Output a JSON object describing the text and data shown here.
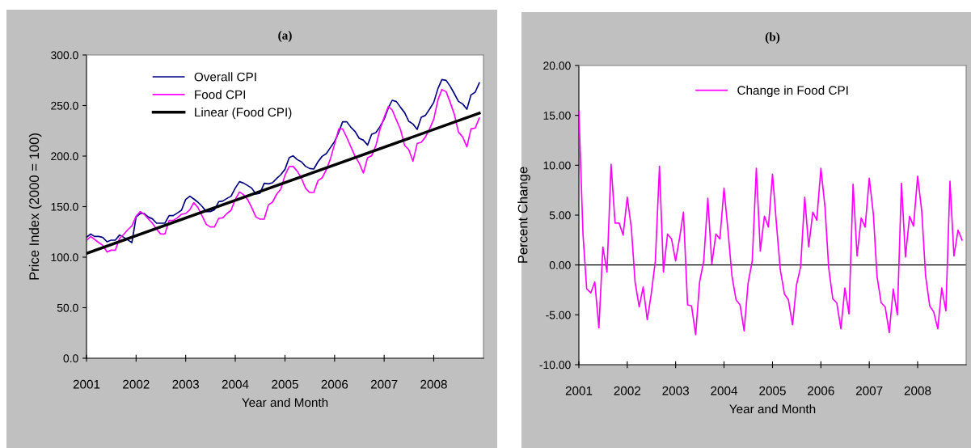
{
  "chart_data": [
    {
      "type": "line",
      "title": "(a)",
      "xlabel": "Year and Month",
      "ylabel": "Price Index (2000 = 100)",
      "x": [
        "2001-01",
        "2001-02",
        "2001-03",
        "2001-04",
        "2001-05",
        "2001-06",
        "2001-07",
        "2001-08",
        "2001-09",
        "2001-10",
        "2001-11",
        "2001-12",
        "2002-01",
        "2002-02",
        "2002-03",
        "2002-04",
        "2002-05",
        "2002-06",
        "2002-07",
        "2002-08",
        "2002-09",
        "2002-10",
        "2002-11",
        "2002-12",
        "2003-01",
        "2003-02",
        "2003-03",
        "2003-04",
        "2003-05",
        "2003-06",
        "2003-07",
        "2003-08",
        "2003-09",
        "2003-10",
        "2003-11",
        "2003-12",
        "2004-01",
        "2004-02",
        "2004-03",
        "2004-04",
        "2004-05",
        "2004-06",
        "2004-07",
        "2004-08",
        "2004-09",
        "2004-10",
        "2004-11",
        "2004-12",
        "2005-01",
        "2005-02",
        "2005-03",
        "2005-04",
        "2005-05",
        "2005-06",
        "2005-07",
        "2005-08",
        "2005-09",
        "2005-10",
        "2005-11",
        "2005-12",
        "2006-01",
        "2006-02",
        "2006-03",
        "2006-04",
        "2006-05",
        "2006-06",
        "2006-07",
        "2006-08",
        "2006-09",
        "2006-10",
        "2006-11",
        "2006-12",
        "2007-01",
        "2007-02",
        "2007-03",
        "2007-04",
        "2007-05",
        "2007-06",
        "2007-07",
        "2007-08",
        "2007-09",
        "2007-10",
        "2007-11",
        "2007-12",
        "2008-01",
        "2008-02",
        "2008-03",
        "2008-04",
        "2008-05",
        "2008-06",
        "2008-07",
        "2008-08",
        "2008-09",
        "2008-10",
        "2008-11",
        "2008-12"
      ],
      "xlim": [
        "2001-01",
        "2009-01"
      ],
      "xticks": [
        {
          "value": "2001-01",
          "label": "2001"
        },
        {
          "value": "2002-01",
          "label": "2002"
        },
        {
          "value": "2003-01",
          "label": "2003"
        },
        {
          "value": "2004-01",
          "label": "2004"
        },
        {
          "value": "2005-01",
          "label": "2005"
        },
        {
          "value": "2006-01",
          "label": "2006"
        },
        {
          "value": "2007-01",
          "label": "2007"
        },
        {
          "value": "2008-01",
          "label": "2008"
        }
      ],
      "ylim": [
        0,
        300
      ],
      "yticks": [
        {
          "value": 0,
          "label": "0.0"
        },
        {
          "value": 50,
          "label": "50.0"
        },
        {
          "value": 100,
          "label": "100.0"
        },
        {
          "value": 150,
          "label": "150.0"
        },
        {
          "value": 200,
          "label": "200.0"
        },
        {
          "value": 250,
          "label": "250.0"
        },
        {
          "value": 300,
          "label": "300.0"
        }
      ],
      "legend": "top left",
      "grid": false,
      "series": [
        {
          "name": "Overall CPI",
          "color": "#000080",
          "values": [
            119.7,
            122.9,
            120.5,
            120.5,
            119.5,
            115.2,
            116.8,
            116.8,
            121.9,
            119.7,
            117.1,
            114.4,
            139.7,
            143.2,
            143.2,
            139.7,
            137.9,
            133.6,
            133.6,
            133.6,
            141.1,
            141.1,
            143.7,
            146.4,
            157.1,
            160.3,
            157.6,
            154.4,
            150.4,
            145.1,
            145.1,
            146.9,
            154.9,
            155.5,
            158.1,
            160.3,
            168.3,
            174.7,
            173.3,
            170.9,
            168.3,
            162.4,
            163.2,
            173.1,
            172.5,
            173.6,
            177.9,
            181.6,
            186.9,
            198.4,
            200.3,
            196.5,
            194.4,
            189.9,
            187.7,
            187.2,
            194.4,
            199.7,
            202.4,
            208.3,
            214.4,
            223.7,
            233.9,
            233.9,
            228.5,
            224.3,
            217.6,
            215.7,
            210.9,
            221.6,
            223.2,
            229.1,
            236.5,
            247.7,
            255.2,
            253.9,
            248.3,
            242.9,
            234.4,
            231.7,
            226.4,
            238.4,
            240.3,
            246.4,
            253.1,
            266.9,
            275.7,
            274.9,
            269.1,
            261.6,
            254.1,
            251.5,
            246.4,
            260.5,
            263.2,
            272.3
          ]
        },
        {
          "name": "Food CPI",
          "color": "#ff00ff",
          "values": [
            116.5,
            120.5,
            117.6,
            114.4,
            111.7,
            105.1,
            106.9,
            106.9,
            118.4,
            122.4,
            127.2,
            130.9,
            140.5,
            145.1,
            142.4,
            137.9,
            133.6,
            127.7,
            122.9,
            122.9,
            136.3,
            136.3,
            138.9,
            142.4,
            143.2,
            146.9,
            153.9,
            149.1,
            141.1,
            132.5,
            129.9,
            129.9,
            138.4,
            138.9,
            143.2,
            146.4,
            157.1,
            164.5,
            161.9,
            157.1,
            149.1,
            139.7,
            137.6,
            137.6,
            151.7,
            154.4,
            162.4,
            167.2,
            181.1,
            189.6,
            189.9,
            185.1,
            178.4,
            168.3,
            164.0,
            164.0,
            175.7,
            178.4,
            186.4,
            197.1,
            211.7,
            226.9,
            226.9,
            218.4,
            209.1,
            199.7,
            193.1,
            183.2,
            198.4,
            200.3,
            210.4,
            226.4,
            238.4,
            249.1,
            245.6,
            235.7,
            226.4,
            210.4,
            206.4,
            194.9,
            212.5,
            213.6,
            218.9,
            226.9,
            236.5,
            255.7,
            265.9,
            263.7,
            253.1,
            241.1,
            223.7,
            218.9,
            209.1,
            226.9,
            227.7,
            237.6
          ]
        },
        {
          "name": "Linear (Food CPI)",
          "color": "#000000",
          "x": [
            "2001-01",
            "2008-12"
          ],
          "values": [
            103.7,
            242.4
          ]
        }
      ]
    },
    {
      "type": "line",
      "title": "(b)",
      "xlabel": "Year and Month",
      "ylabel": "Percent Change",
      "x": [
        "2001-01",
        "2001-02",
        "2001-03",
        "2001-04",
        "2001-05",
        "2001-06",
        "2001-07",
        "2001-08",
        "2001-09",
        "2001-10",
        "2001-11",
        "2001-12",
        "2002-01",
        "2002-02",
        "2002-03",
        "2002-04",
        "2002-05",
        "2002-06",
        "2002-07",
        "2002-08",
        "2002-09",
        "2002-10",
        "2002-11",
        "2002-12",
        "2003-01",
        "2003-02",
        "2003-03",
        "2003-04",
        "2003-05",
        "2003-06",
        "2003-07",
        "2003-08",
        "2003-09",
        "2003-10",
        "2003-11",
        "2003-12",
        "2004-01",
        "2004-02",
        "2004-03",
        "2004-04",
        "2004-05",
        "2004-06",
        "2004-07",
        "2004-08",
        "2004-09",
        "2004-10",
        "2004-11",
        "2004-12",
        "2005-01",
        "2005-02",
        "2005-03",
        "2005-04",
        "2005-05",
        "2005-06",
        "2005-07",
        "2005-08",
        "2005-09",
        "2005-10",
        "2005-11",
        "2005-12",
        "2006-01",
        "2006-02",
        "2006-03",
        "2006-04",
        "2006-05",
        "2006-06",
        "2006-07",
        "2006-08",
        "2006-09",
        "2006-10",
        "2006-11",
        "2006-12",
        "2007-01",
        "2007-02",
        "2007-03",
        "2007-04",
        "2007-05",
        "2007-06",
        "2007-07",
        "2007-08",
        "2007-09",
        "2007-10",
        "2007-11",
        "2007-12",
        "2008-01",
        "2008-02",
        "2008-03",
        "2008-04",
        "2008-05",
        "2008-06",
        "2008-07",
        "2008-08",
        "2008-09",
        "2008-10",
        "2008-11",
        "2008-12"
      ],
      "xlim": [
        "2001-01",
        "2009-01"
      ],
      "xticks": [
        {
          "value": "2001-01",
          "label": "2001"
        },
        {
          "value": "2002-01",
          "label": "2002"
        },
        {
          "value": "2003-01",
          "label": "2003"
        },
        {
          "value": "2004-01",
          "label": "2004"
        },
        {
          "value": "2005-01",
          "label": "2005"
        },
        {
          "value": "2006-01",
          "label": "2006"
        },
        {
          "value": "2007-01",
          "label": "2007"
        },
        {
          "value": "2008-01",
          "label": "2008"
        }
      ],
      "ylim": [
        -10,
        20
      ],
      "yticks": [
        {
          "value": -10,
          "label": "-10.00"
        },
        {
          "value": -5,
          "label": "-5.00"
        },
        {
          "value": 0,
          "label": "0.00"
        },
        {
          "value": 5,
          "label": "5.00"
        },
        {
          "value": 10,
          "label": "10.00"
        },
        {
          "value": 15,
          "label": "15.00"
        },
        {
          "value": 20,
          "label": "20.00"
        }
      ],
      "legend": "top",
      "grid": false,
      "ref_lines": [
        {
          "axis": "y",
          "value": 0,
          "color": "#000000"
        }
      ],
      "series": [
        {
          "name": "Change in Food CPI",
          "color": "#ff00ff",
          "values": [
            15.4,
            3.1,
            -2.4,
            -2.8,
            -1.7,
            -6.3,
            1.8,
            -0.7,
            10.1,
            4.2,
            4.2,
            3.0,
            6.8,
            3.7,
            -1.7,
            -4.2,
            -2.2,
            -5.5,
            -2.9,
            0.4,
            9.9,
            -0.7,
            3.1,
            2.6,
            0.4,
            2.8,
            5.3,
            -4.0,
            -4.1,
            -7.0,
            -1.7,
            0.4,
            6.7,
            0.1,
            3.1,
            2.6,
            7.7,
            3.3,
            -1.1,
            -3.5,
            -4.0,
            -6.6,
            -1.8,
            0.4,
            9.7,
            1.4,
            4.9,
            3.8,
            9.1,
            3.9,
            -0.5,
            -2.9,
            -3.5,
            -6.0,
            -2.0,
            -0.2,
            6.8,
            1.8,
            5.3,
            4.5,
            9.7,
            5.8,
            -0.3,
            -3.4,
            -3.8,
            -6.4,
            -2.3,
            -4.9,
            8.1,
            0.9,
            4.7,
            3.8,
            8.7,
            5.1,
            -1.2,
            -3.8,
            -4.2,
            -6.8,
            -2.4,
            -5.0,
            8.2,
            0.8,
            4.9,
            3.9,
            8.9,
            5.4,
            -1.1,
            -4.1,
            -4.7,
            -6.4,
            -2.3,
            -4.6,
            8.4,
            0.9,
            3.5,
            2.5
          ]
        }
      ]
    }
  ]
}
